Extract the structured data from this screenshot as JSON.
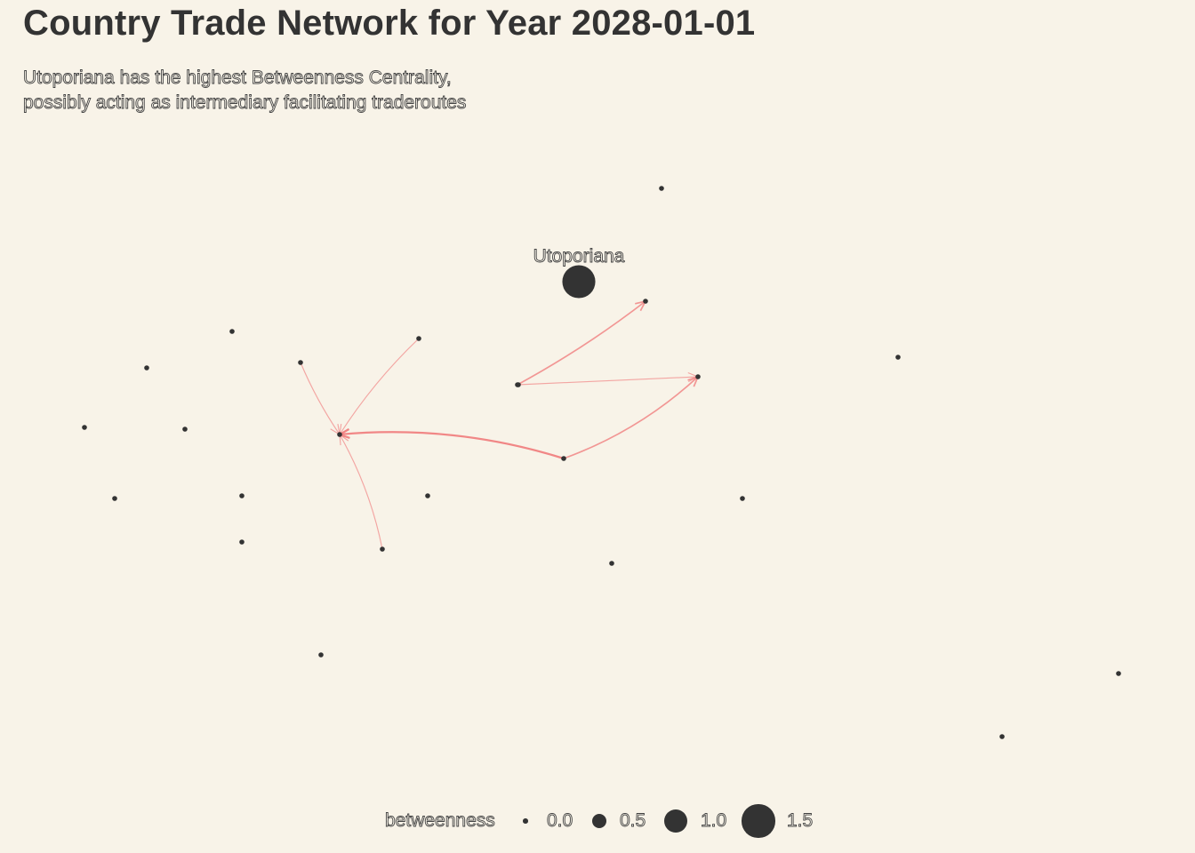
{
  "title": "Country Trade Network for Year 2028-01-01",
  "subtitle": {
    "line1": "Utoporiana has the highest Betweenness Centrality,",
    "line2": "possibly acting as intermediary facilitating traderoutes"
  },
  "colors": {
    "background": "#f8f3e8",
    "node": "#333333",
    "edge": "#f08080",
    "text": "#333333"
  },
  "highlight_label": "Utoporiana",
  "legend": {
    "title": "betweenness",
    "items": [
      {
        "label": "0.0",
        "value": 0.0
      },
      {
        "label": "0.5",
        "value": 0.5
      },
      {
        "label": "1.0",
        "value": 1.0
      },
      {
        "label": "1.5",
        "value": 1.5
      }
    ]
  },
  "network": {
    "nodes": [
      {
        "id": "utoporiana",
        "label": "Utoporiana",
        "betweenness": 1.5
      },
      {
        "id": "n01",
        "label": "",
        "betweenness": 0.0
      },
      {
        "id": "n02",
        "label": "",
        "betweenness": 0.0
      },
      {
        "id": "n03",
        "label": "",
        "betweenness": 0.0
      },
      {
        "id": "n04",
        "label": "",
        "betweenness": 0.0
      },
      {
        "id": "n05",
        "label": "",
        "betweenness": 0.0
      },
      {
        "id": "n06",
        "label": "",
        "betweenness": 0.0
      },
      {
        "id": "n07",
        "label": "",
        "betweenness": 0.0
      },
      {
        "id": "n08",
        "label": "",
        "betweenness": 0.0
      },
      {
        "id": "n09",
        "label": "",
        "betweenness": 0.0
      },
      {
        "id": "n10",
        "label": "",
        "betweenness": 0.0
      },
      {
        "id": "n11",
        "label": "",
        "betweenness": 0.0
      },
      {
        "id": "n12",
        "label": "",
        "betweenness": 0.0
      },
      {
        "id": "n13",
        "label": "",
        "betweenness": 0.0
      },
      {
        "id": "n14",
        "label": "",
        "betweenness": 0.0
      },
      {
        "id": "n15",
        "label": "",
        "betweenness": 0.0
      },
      {
        "id": "n16",
        "label": "",
        "betweenness": 0.0
      },
      {
        "id": "n17",
        "label": "",
        "betweenness": 0.0
      },
      {
        "id": "n18",
        "label": "",
        "betweenness": 0.0
      },
      {
        "id": "n19",
        "label": "",
        "betweenness": 0.0
      },
      {
        "id": "n20",
        "label": "",
        "betweenness": 0.0
      },
      {
        "id": "n21",
        "label": "",
        "betweenness": 0.0
      },
      {
        "id": "n22",
        "label": "",
        "betweenness": 0.0
      },
      {
        "id": "n23",
        "label": "",
        "betweenness": 0.0
      }
    ],
    "edges": [
      {
        "source": "n15",
        "target": "n09",
        "weight": 3
      },
      {
        "source": "n15",
        "target": "n12",
        "weight": 2
      },
      {
        "source": "n14",
        "target": "n09",
        "weight": 1
      },
      {
        "source": "n14",
        "target": "n03",
        "weight": 2
      },
      {
        "source": "n05",
        "target": "n09",
        "weight": 1
      },
      {
        "source": "n04",
        "target": "n09",
        "weight": 1
      },
      {
        "source": "n18",
        "target": "n09",
        "weight": 1
      }
    ]
  }
}
